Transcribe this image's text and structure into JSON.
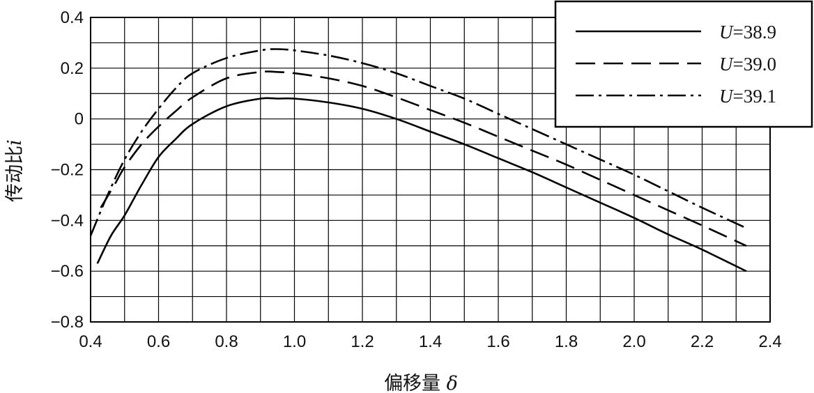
{
  "chart_data": {
    "type": "line",
    "xlabel": "偏移量",
    "xlabel_symbol": "δ",
    "ylabel": "传动比",
    "ylabel_symbol": "i",
    "xlim": [
      0.4,
      2.4
    ],
    "ylim": [
      -0.8,
      0.4
    ],
    "grid": true,
    "legend_position": "top-right",
    "x_ticks": [
      "0.4",
      "0.6",
      "0.8",
      "1.0",
      "1.2",
      "1.4",
      "1.6",
      "1.8",
      "2.0",
      "2.2",
      "2.4"
    ],
    "y_ticks": [
      "0.4",
      "0.2",
      "0",
      "−0.2",
      "−0.4",
      "−0.6",
      "−0.8"
    ],
    "series": [
      {
        "name": "U=38.9",
        "legend_var": "U",
        "legend_value": "=38.9",
        "line_style": "solid",
        "x": [
          0.42,
          0.46,
          0.5,
          0.55,
          0.6,
          0.65,
          0.7,
          0.8,
          0.9,
          0.95,
          1.0,
          1.1,
          1.2,
          1.3,
          1.4,
          1.5,
          1.6,
          1.7,
          1.8,
          1.9,
          2.0,
          2.1,
          2.2,
          2.33
        ],
        "y": [
          -0.57,
          -0.46,
          -0.38,
          -0.26,
          -0.15,
          -0.08,
          -0.02,
          0.05,
          0.08,
          0.08,
          0.08,
          0.065,
          0.04,
          0.0,
          -0.05,
          -0.1,
          -0.155,
          -0.21,
          -0.27,
          -0.33,
          -0.39,
          -0.455,
          -0.515,
          -0.6
        ]
      },
      {
        "name": "U=39.0",
        "legend_var": "U",
        "legend_value": "=39.0",
        "line_style": "dashed",
        "x": [
          0.43,
          0.47,
          0.5,
          0.55,
          0.6,
          0.65,
          0.7,
          0.8,
          0.9,
          0.95,
          1.0,
          1.1,
          1.2,
          1.3,
          1.4,
          1.5,
          1.6,
          1.7,
          1.8,
          1.9,
          2.0,
          2.1,
          2.2,
          2.33
        ],
        "y": [
          -0.35,
          -0.26,
          -0.19,
          -0.1,
          -0.03,
          0.03,
          0.085,
          0.16,
          0.185,
          0.185,
          0.18,
          0.16,
          0.13,
          0.085,
          0.035,
          -0.015,
          -0.07,
          -0.125,
          -0.18,
          -0.24,
          -0.3,
          -0.36,
          -0.42,
          -0.5
        ]
      },
      {
        "name": "U=39.1",
        "legend_var": "U",
        "legend_value": "=39.1",
        "line_style": "dash-dot",
        "x": [
          0.4,
          0.45,
          0.5,
          0.55,
          0.6,
          0.65,
          0.7,
          0.8,
          0.9,
          0.95,
          1.0,
          1.1,
          1.2,
          1.3,
          1.4,
          1.5,
          1.6,
          1.7,
          1.8,
          1.9,
          2.0,
          2.1,
          2.2,
          2.33
        ],
        "y": [
          -0.46,
          -0.3,
          -0.16,
          -0.05,
          0.04,
          0.12,
          0.18,
          0.24,
          0.27,
          0.275,
          0.27,
          0.25,
          0.22,
          0.18,
          0.13,
          0.08,
          0.02,
          -0.04,
          -0.1,
          -0.16,
          -0.22,
          -0.285,
          -0.35,
          -0.43
        ]
      }
    ]
  }
}
